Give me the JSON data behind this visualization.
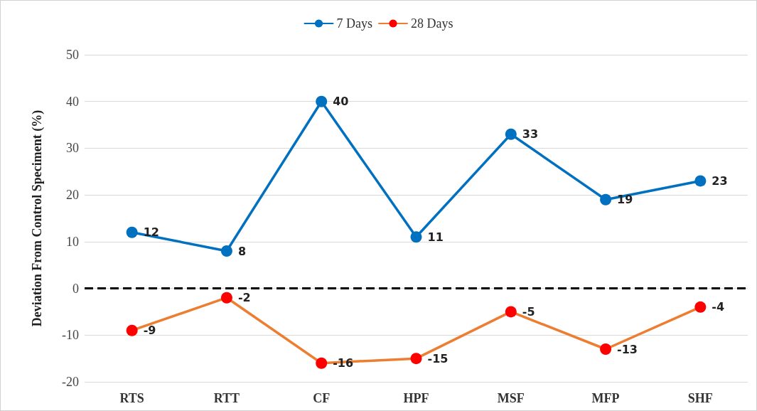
{
  "chart_data": {
    "type": "line",
    "ylabel": "Deviation From Control Speciment (%)",
    "categories": [
      "RTS",
      "RTT",
      "CF",
      "HPF",
      "MSF",
      "MFP",
      "SHF"
    ],
    "series": [
      {
        "name": "7 Days",
        "color": "#0070c0",
        "values": [
          12,
          8,
          40,
          11,
          33,
          19,
          23
        ]
      },
      {
        "name": "28 Days",
        "color": "#ed7d31",
        "colors": [
          "#ff0000",
          "#ff0000",
          "#ff0000",
          "#ff0000",
          "#ff0000",
          "#ff0000",
          "#ff0000"
        ],
        "values": [
          -9,
          -2,
          -16,
          -15,
          -5,
          -13,
          -4
        ]
      }
    ],
    "ylim": [
      -20,
      50
    ],
    "yticks": [
      -20,
      -10,
      0,
      10,
      20,
      30,
      40,
      50
    ],
    "grid": "y",
    "legend": "top",
    "marker": "circle",
    "line_style": "solid",
    "data_labels": true,
    "ref_lines": [
      {
        "axis": "y",
        "value": 0,
        "color": "#000000",
        "line_style": "dashed"
      }
    ]
  }
}
